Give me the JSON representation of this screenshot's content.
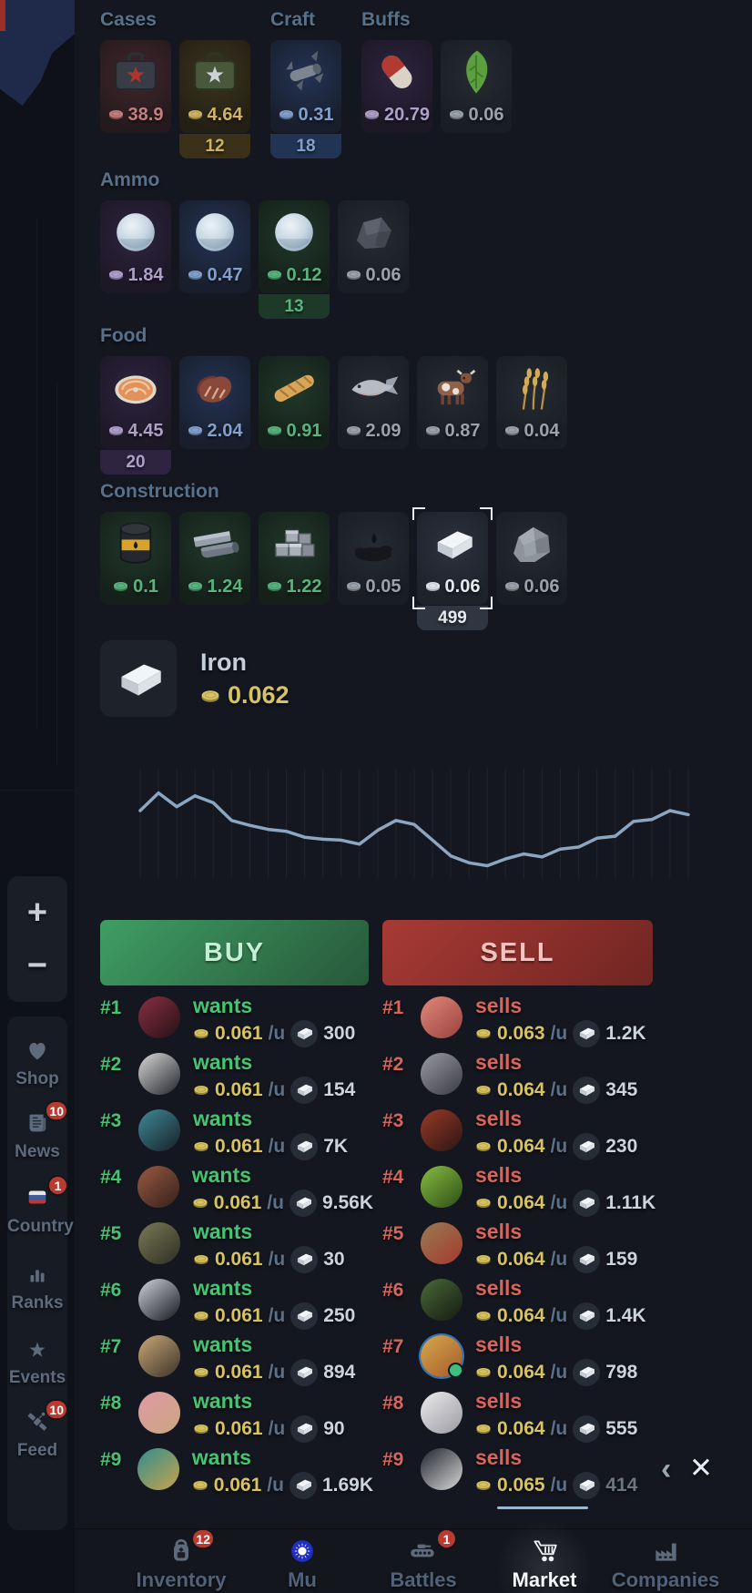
{
  "colors": {
    "accent_gold": "#d8c266",
    "accent_green": "#45c472",
    "accent_red": "#d8655c",
    "chart_line": "#8ca6c2",
    "buy_gradient": [
      "#3f9e63",
      "#27573a"
    ],
    "sell_gradient": [
      "#a83a35",
      "#702522"
    ]
  },
  "market": {
    "top_groups": [
      {
        "label": "Cases",
        "items": [
          {
            "icon": "red-case",
            "price": "38.9",
            "tint": "red"
          },
          {
            "icon": "green-case",
            "price": "4.64",
            "tint": "gold",
            "badge": "12"
          }
        ]
      },
      {
        "label": "Craft",
        "items": [
          {
            "icon": "scrap",
            "price": "0.31",
            "tint": "blue",
            "badge": "18"
          }
        ]
      },
      {
        "label": "Buffs",
        "items": [
          {
            "icon": "pill",
            "price": "20.79",
            "tint": "purple"
          },
          {
            "icon": "leaf",
            "price": "0.06",
            "tint": "slate"
          }
        ]
      }
    ],
    "sections": [
      {
        "label": "Ammo",
        "items": [
          {
            "icon": "snowball",
            "price": "1.84",
            "tint": "purple"
          },
          {
            "icon": "snowball",
            "price": "0.47",
            "tint": "blue"
          },
          {
            "icon": "snowball",
            "price": "0.12",
            "tint": "green",
            "badge": "13"
          },
          {
            "icon": "rock",
            "price": "0.06",
            "tint": "slate"
          }
        ]
      },
      {
        "label": "Food",
        "items": [
          {
            "icon": "salmon-steak",
            "price": "4.45",
            "tint": "purple",
            "badge": "20"
          },
          {
            "icon": "steak",
            "price": "2.04",
            "tint": "blue"
          },
          {
            "icon": "baguette",
            "price": "0.91",
            "tint": "green"
          },
          {
            "icon": "fish",
            "price": "2.09",
            "tint": "slate"
          },
          {
            "icon": "cow",
            "price": "0.87",
            "tint": "slate"
          },
          {
            "icon": "wheat",
            "price": "0.04",
            "tint": "slate"
          }
        ]
      },
      {
        "label": "Construction",
        "items": [
          {
            "icon": "oil-barrel",
            "price": "0.1",
            "tint": "green"
          },
          {
            "icon": "steel",
            "price": "1.24",
            "tint": "green"
          },
          {
            "icon": "bricks",
            "price": "1.22",
            "tint": "green"
          },
          {
            "icon": "oil-spill",
            "price": "0.05",
            "tint": "slate"
          },
          {
            "icon": "iron-ingot",
            "price": "0.06",
            "tint": "iron",
            "badge": "499",
            "selected": true
          },
          {
            "icon": "stone",
            "price": "0.06",
            "tint": "slate"
          }
        ]
      }
    ]
  },
  "selected_item": {
    "name": "Iron",
    "price": "0.062",
    "icon": "iron-ingot"
  },
  "chart_data": {
    "type": "line",
    "title": "Iron market price history (axes unlabeled)",
    "xlabel": "",
    "ylabel": "",
    "x": [
      1,
      2,
      3,
      4,
      5,
      6,
      7,
      8,
      9,
      10,
      11,
      12,
      13,
      14,
      15,
      16,
      17,
      18,
      19,
      20,
      21,
      22,
      23,
      24,
      25,
      26,
      27,
      28,
      29,
      30,
      31
    ],
    "values": [
      62,
      80,
      66,
      77,
      70,
      52,
      47,
      43,
      41,
      35,
      33,
      32,
      28,
      42,
      52,
      48,
      32,
      16,
      9,
      6,
      13,
      18,
      15,
      23,
      25,
      34,
      36,
      51,
      53,
      62,
      58
    ],
    "ylim": [
      0,
      100
    ],
    "grid": "vertical",
    "legend": "none",
    "line_color": "#8ca6c2"
  },
  "trade_buttons": {
    "buy": "BUY",
    "sell": "SELL"
  },
  "orders": {
    "buy": [
      {
        "rank": "#1",
        "action": "wants",
        "price": "0.061",
        "unit": "/u",
        "qty": "300",
        "avatar": [
          "#8a3040",
          "#241018"
        ]
      },
      {
        "rank": "#2",
        "action": "wants",
        "price": "0.061",
        "unit": "/u",
        "qty": "154",
        "avatar": [
          "#d8d8d8",
          "#23252b"
        ]
      },
      {
        "rank": "#3",
        "action": "wants",
        "price": "0.061",
        "unit": "/u",
        "qty": "7K",
        "avatar": [
          "#3f8a96",
          "#172029"
        ]
      },
      {
        "rank": "#4",
        "action": "wants",
        "price": "0.061",
        "unit": "/u",
        "qty": "9.56K",
        "avatar": [
          "#9a5a42",
          "#33201c"
        ]
      },
      {
        "rank": "#5",
        "action": "wants",
        "price": "0.061",
        "unit": "/u",
        "qty": "30",
        "avatar": [
          "#7a7a58",
          "#2e2e22"
        ]
      },
      {
        "rank": "#6",
        "action": "wants",
        "price": "0.061",
        "unit": "/u",
        "qty": "250",
        "avatar": [
          "#cfd4da",
          "#15171d"
        ]
      },
      {
        "rank": "#7",
        "action": "wants",
        "price": "0.061",
        "unit": "/u",
        "qty": "894",
        "avatar": [
          "#c9a878",
          "#3c3228"
        ]
      },
      {
        "rank": "#8",
        "action": "wants",
        "price": "0.061",
        "unit": "/u",
        "qty": "90",
        "avatar": [
          "#e09aa8",
          "#caa57e"
        ]
      },
      {
        "rank": "#9",
        "action": "wants",
        "price": "0.061",
        "unit": "/u",
        "qty": "1.69K",
        "avatar": [
          "#2f8f8f",
          "#c9a24a"
        ]
      }
    ],
    "sell": [
      {
        "rank": "#1",
        "action": "sells",
        "price": "0.063",
        "unit": "/u",
        "qty": "1.2K",
        "avatar": [
          "#e08a78",
          "#9a4040"
        ]
      },
      {
        "rank": "#2",
        "action": "sells",
        "price": "0.064",
        "unit": "/u",
        "qty": "345",
        "avatar": [
          "#9a9aa2",
          "#3a3a44"
        ]
      },
      {
        "rank": "#3",
        "action": "sells",
        "price": "0.064",
        "unit": "/u",
        "qty": "230",
        "avatar": [
          "#9a3a28",
          "#2a1512"
        ]
      },
      {
        "rank": "#4",
        "action": "sells",
        "price": "0.064",
        "unit": "/u",
        "qty": "1.11K",
        "avatar": [
          "#86bb42",
          "#2e4f16"
        ]
      },
      {
        "rank": "#5",
        "action": "sells",
        "price": "0.064",
        "unit": "/u",
        "qty": "159",
        "avatar": [
          "#9a7a52",
          "#a33a2e"
        ]
      },
      {
        "rank": "#6",
        "action": "sells",
        "price": "0.064",
        "unit": "/u",
        "qty": "1.4K",
        "avatar": [
          "#4a6a38",
          "#141a10"
        ]
      },
      {
        "rank": "#7",
        "action": "sells",
        "price": "0.064",
        "unit": "/u",
        "qty": "798",
        "avatar": [
          "#d8a84e",
          "#a35a28"
        ],
        "ring": "#2b77c0",
        "online": true
      },
      {
        "rank": "#8",
        "action": "sells",
        "price": "0.064",
        "unit": "/u",
        "qty": "555",
        "avatar": [
          "#ececec",
          "#9a9aa2"
        ]
      },
      {
        "rank": "#9",
        "action": "sells",
        "price": "0.065",
        "unit": "/u",
        "qty": "414",
        "avatar": [
          "#20242c",
          "#d8d8d8"
        ],
        "muted": true
      }
    ]
  },
  "sidebar": {
    "zoom_in": "+",
    "zoom_out": "−",
    "items": [
      {
        "label": "Shop",
        "icon": "heart"
      },
      {
        "label": "News",
        "icon": "newspaper",
        "badge": "10"
      },
      {
        "label": "Country",
        "icon": "flag-russia",
        "badge": "1"
      },
      {
        "label": "Ranks",
        "icon": "bar-ranks"
      },
      {
        "label": "Events",
        "icon": "star"
      },
      {
        "label": "Feed",
        "icon": "satellite",
        "badge": "10"
      }
    ]
  },
  "bottom_nav": {
    "items": [
      {
        "label": "Inventory",
        "icon": "backpack",
        "badge": "12"
      },
      {
        "label": "Mu",
        "icon": "sun-emblem"
      },
      {
        "label": "Battles",
        "icon": "tank",
        "badge": "1"
      },
      {
        "label": "Market",
        "icon": "cart",
        "active": true
      },
      {
        "label": "Companies",
        "icon": "factory"
      }
    ]
  },
  "overlay": {
    "collapse_icon": "‹",
    "close_icon": "✕"
  }
}
